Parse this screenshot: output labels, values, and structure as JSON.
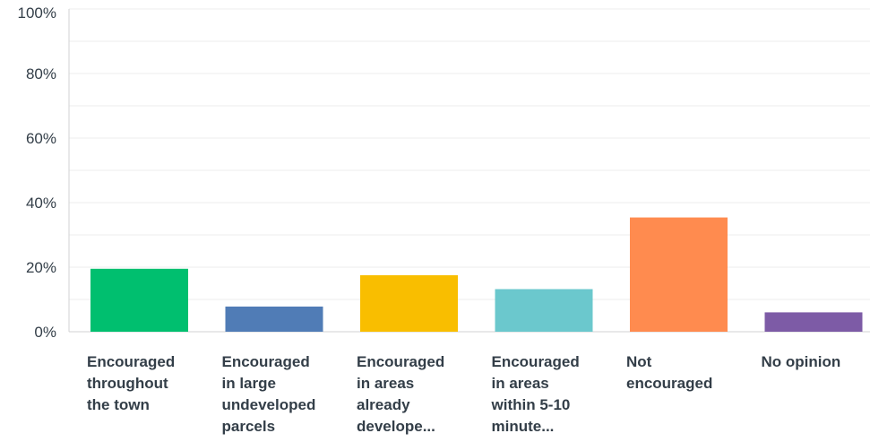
{
  "chart_data": {
    "type": "bar",
    "categories": [
      "Encouraged throughout the town",
      "Encouraged in large undeveloped parcels",
      "Encouraged in areas already develope...",
      "Encouraged in areas within 5-10 minute...",
      "Not encouraged",
      "No opinion"
    ],
    "category_display": [
      "Encouraged\nthroughout\nthe town",
      "Encouraged\nin large\nundeveloped\nparcels",
      "Encouraged\nin areas\nalready\ndevelope...",
      "Encouraged\nin areas\nwithin 5-10\nminute...",
      "Not\nencouraged",
      "No opinion"
    ],
    "values": [
      19.5,
      7.8,
      17.5,
      13.2,
      35.4,
      6.0
    ],
    "colors": [
      "#00bf6f",
      "#507cb6",
      "#f9be00",
      "#6bc8cd",
      "#ff8b4f",
      "#7d5ba6"
    ],
    "yticks": [
      "100%",
      "80%",
      "60%",
      "40%",
      "20%",
      "0%"
    ],
    "ylim": [
      0,
      100
    ],
    "grid": true,
    "title": "",
    "xlabel": "",
    "ylabel": ""
  }
}
